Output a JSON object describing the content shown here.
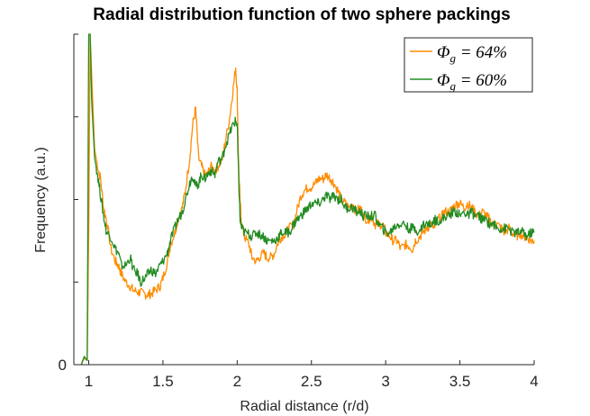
{
  "chart_data": {
    "type": "line",
    "title": "Radial distribution function of two sphere packings",
    "xlabel": "Radial distance (r/d)",
    "ylabel": "Frequency (a.u.)",
    "xlim": [
      0.9,
      4.0
    ],
    "ylim": [
      0,
      4.0
    ],
    "x_ticks": [
      1,
      1.5,
      2,
      2.5,
      3,
      3.5,
      4
    ],
    "x_tick_labels": [
      "1",
      "1.5",
      "2",
      "2.5",
      "3",
      "3.5",
      "4"
    ],
    "y_ticks": [
      0,
      1,
      2,
      3,
      4
    ],
    "y_tick_labels": [
      "0",
      "",
      "",
      "",
      ""
    ],
    "grid": false,
    "legend_position": "top-right",
    "series": [
      {
        "name": "Φ_g = 64%",
        "color": "#ff8c00",
        "x": [
          0.95,
          0.97,
          0.99,
          1.0,
          1.01,
          1.02,
          1.04,
          1.06,
          1.08,
          1.1,
          1.12,
          1.15,
          1.18,
          1.2,
          1.22,
          1.25,
          1.28,
          1.3,
          1.33,
          1.35,
          1.38,
          1.4,
          1.42,
          1.45,
          1.48,
          1.5,
          1.53,
          1.55,
          1.58,
          1.6,
          1.63,
          1.65,
          1.68,
          1.7,
          1.72,
          1.74,
          1.76,
          1.78,
          1.8,
          1.82,
          1.85,
          1.87,
          1.9,
          1.92,
          1.95,
          1.97,
          1.99,
          2.0,
          2.01,
          2.02,
          2.03,
          2.05,
          2.08,
          2.1,
          2.13,
          2.15,
          2.18,
          2.2,
          2.23,
          2.25,
          2.28,
          2.3,
          2.33,
          2.35,
          2.38,
          2.4,
          2.43,
          2.45,
          2.48,
          2.5,
          2.53,
          2.55,
          2.58,
          2.6,
          2.63,
          2.65,
          2.68,
          2.7,
          2.73,
          2.75,
          2.78,
          2.8,
          2.83,
          2.85,
          2.88,
          2.9,
          2.93,
          2.95,
          2.98,
          3.0,
          3.03,
          3.05,
          3.08,
          3.1,
          3.13,
          3.15,
          3.18,
          3.2,
          3.23,
          3.25,
          3.28,
          3.3,
          3.33,
          3.35,
          3.38,
          3.4,
          3.43,
          3.45,
          3.48,
          3.5,
          3.53,
          3.55,
          3.58,
          3.6,
          3.63,
          3.65,
          3.68,
          3.7,
          3.73,
          3.75,
          3.78,
          3.8,
          3.83,
          3.85,
          3.88,
          3.9,
          3.93,
          3.95,
          3.98,
          4.0
        ],
        "y": [
          0.0,
          0.08,
          0.05,
          1.6,
          4.0,
          3.5,
          2.6,
          2.4,
          2.25,
          1.9,
          1.75,
          1.4,
          1.25,
          1.2,
          1.1,
          1.0,
          0.95,
          0.9,
          0.88,
          0.87,
          0.85,
          0.85,
          0.86,
          0.9,
          0.95,
          1.05,
          1.25,
          1.45,
          1.6,
          1.75,
          1.9,
          2.1,
          2.5,
          2.9,
          3.1,
          2.5,
          2.4,
          2.3,
          2.3,
          2.4,
          2.35,
          2.4,
          2.5,
          2.7,
          3.0,
          3.3,
          3.6,
          3.3,
          2.4,
          1.95,
          1.7,
          1.55,
          1.45,
          1.3,
          1.25,
          1.3,
          1.35,
          1.3,
          1.3,
          1.35,
          1.5,
          1.55,
          1.6,
          1.65,
          1.7,
          1.85,
          2.05,
          2.1,
          2.15,
          2.15,
          2.2,
          2.25,
          2.25,
          2.3,
          2.25,
          2.2,
          2.1,
          2.0,
          1.95,
          1.9,
          1.95,
          1.85,
          1.9,
          1.8,
          1.75,
          1.8,
          1.7,
          1.7,
          1.7,
          1.6,
          1.55,
          1.5,
          1.5,
          1.4,
          1.45,
          1.45,
          1.4,
          1.5,
          1.55,
          1.6,
          1.65,
          1.7,
          1.65,
          1.75,
          1.8,
          1.85,
          1.85,
          1.9,
          1.95,
          1.95,
          1.9,
          1.95,
          1.9,
          1.85,
          1.8,
          1.85,
          1.8,
          1.75,
          1.7,
          1.7,
          1.65,
          1.6,
          1.65,
          1.6,
          1.55,
          1.6,
          1.55,
          1.55,
          1.5,
          1.5
        ]
      },
      {
        "name": "Φ_g = 60%",
        "color": "#228b22",
        "x": [
          0.95,
          0.97,
          0.99,
          1.0,
          1.01,
          1.02,
          1.04,
          1.06,
          1.08,
          1.1,
          1.12,
          1.15,
          1.18,
          1.2,
          1.22,
          1.25,
          1.28,
          1.3,
          1.33,
          1.35,
          1.38,
          1.4,
          1.42,
          1.45,
          1.48,
          1.5,
          1.53,
          1.55,
          1.58,
          1.6,
          1.63,
          1.65,
          1.68,
          1.7,
          1.72,
          1.74,
          1.76,
          1.78,
          1.8,
          1.82,
          1.85,
          1.87,
          1.9,
          1.92,
          1.95,
          1.97,
          1.99,
          2.0,
          2.01,
          2.02,
          2.03,
          2.05,
          2.08,
          2.1,
          2.13,
          2.15,
          2.18,
          2.2,
          2.23,
          2.25,
          2.28,
          2.3,
          2.33,
          2.35,
          2.38,
          2.4,
          2.43,
          2.45,
          2.48,
          2.5,
          2.53,
          2.55,
          2.58,
          2.6,
          2.63,
          2.65,
          2.68,
          2.7,
          2.73,
          2.75,
          2.78,
          2.8,
          2.83,
          2.85,
          2.88,
          2.9,
          2.93,
          2.95,
          2.98,
          3.0,
          3.03,
          3.05,
          3.08,
          3.1,
          3.13,
          3.15,
          3.18,
          3.2,
          3.23,
          3.25,
          3.28,
          3.3,
          3.33,
          3.35,
          3.38,
          3.4,
          3.43,
          3.45,
          3.48,
          3.5,
          3.53,
          3.55,
          3.58,
          3.6,
          3.63,
          3.65,
          3.68,
          3.7,
          3.73,
          3.75,
          3.78,
          3.8,
          3.83,
          3.85,
          3.88,
          3.9,
          3.93,
          3.95,
          3.98,
          4.0
        ],
        "y": [
          0.0,
          0.1,
          0.05,
          4.0,
          4.0,
          3.2,
          2.5,
          2.3,
          2.05,
          1.8,
          1.6,
          1.55,
          1.4,
          1.35,
          1.2,
          1.2,
          1.3,
          1.15,
          1.1,
          1.0,
          1.05,
          1.1,
          1.15,
          1.1,
          1.2,
          1.25,
          1.35,
          1.5,
          1.65,
          1.75,
          1.85,
          2.0,
          2.2,
          2.3,
          2.15,
          2.2,
          2.3,
          2.25,
          2.3,
          2.35,
          2.3,
          2.45,
          2.5,
          2.65,
          2.8,
          2.9,
          2.95,
          2.9,
          2.25,
          1.75,
          1.65,
          1.6,
          1.58,
          1.55,
          1.6,
          1.58,
          1.55,
          1.5,
          1.5,
          1.5,
          1.55,
          1.6,
          1.6,
          1.6,
          1.7,
          1.75,
          1.8,
          1.85,
          1.9,
          1.95,
          1.95,
          1.95,
          2.0,
          2.05,
          2.0,
          2.05,
          2.0,
          2.0,
          1.9,
          1.9,
          1.9,
          1.85,
          1.85,
          1.8,
          1.8,
          1.8,
          1.8,
          1.7,
          1.65,
          1.6,
          1.6,
          1.65,
          1.7,
          1.7,
          1.7,
          1.65,
          1.65,
          1.65,
          1.6,
          1.7,
          1.7,
          1.7,
          1.75,
          1.75,
          1.75,
          1.8,
          1.8,
          1.85,
          1.85,
          1.8,
          1.85,
          1.8,
          1.85,
          1.8,
          1.8,
          1.75,
          1.75,
          1.7,
          1.7,
          1.65,
          1.65,
          1.65,
          1.65,
          1.6,
          1.6,
          1.6,
          1.6,
          1.55,
          1.6,
          1.6
        ]
      }
    ]
  }
}
